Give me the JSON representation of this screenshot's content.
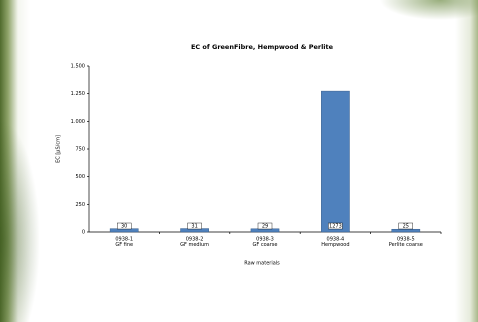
{
  "chart_data": {
    "type": "bar",
    "title": "EC of GreenFibre, Hempwood & Perlite",
    "x_label": "Raw materials",
    "y_label": "EC [µS/cm]",
    "categories": [
      [
        "0938-1",
        "GF fine"
      ],
      [
        "0938-2",
        "GF medium"
      ],
      [
        "0938-3",
        "GF coarse"
      ],
      [
        "0938-4",
        "Hempwood"
      ],
      [
        "0938-5",
        "Perlite coarse"
      ]
    ],
    "values": [
      30,
      31,
      29,
      1273,
      25
    ],
    "color": "#4f81bd",
    "ylim": [
      0,
      1500
    ],
    "yticks": [
      0,
      250,
      500,
      750,
      {
        "value": 1000,
        "label": "1.000"
      },
      {
        "value": 1250,
        "label": "1.250"
      },
      {
        "value": 1500,
        "label": "1.500"
      }
    ],
    "grid": false
  }
}
